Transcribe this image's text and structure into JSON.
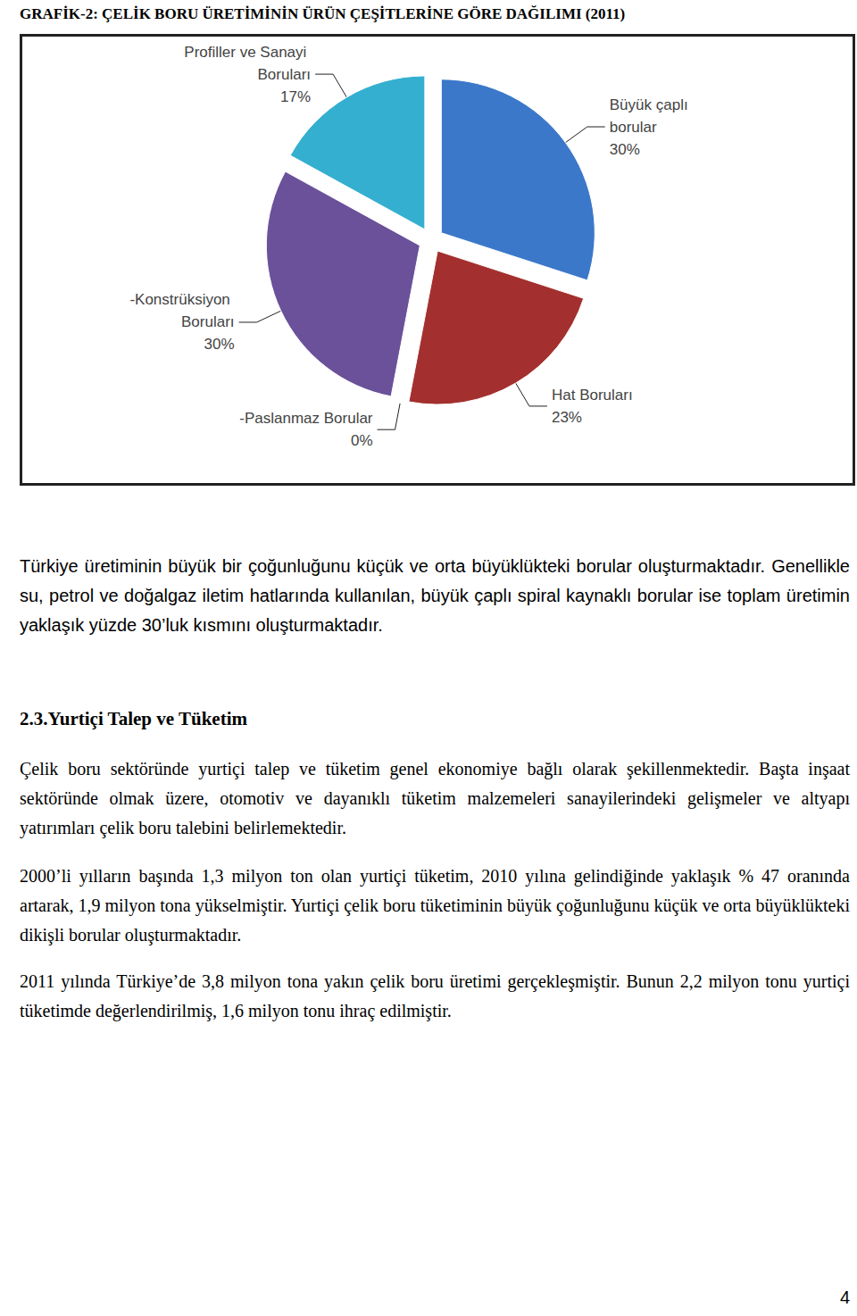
{
  "title": "GRAFİK-2: ÇELİK BORU ÜRETİMİNİN ÜRÜN ÇEŞİTLERİNE GÖRE DAĞILIMI (2011)",
  "chart_data": {
    "type": "pie",
    "categories": [
      "Büyük çaplı borular",
      "Hat Boruları",
      "-Paslanmaz Borular",
      "-Konstrüksiyon Boruları",
      "Profiller ve Sanayi Boruları"
    ],
    "values": [
      30,
      23,
      0,
      30,
      17
    ],
    "value_labels": [
      "30%",
      "23%",
      "0%",
      "30%",
      "17%"
    ],
    "colors": [
      "#3b78c9",
      "#a3302e",
      "#7fa23c",
      "#6a519a",
      "#34afd0"
    ],
    "data_labels": true
  },
  "intro_paragraph": "Türkiye üretiminin büyük bir çoğunluğunu küçük ve orta büyüklükteki borular oluşturmaktadır. Genellikle su, petrol ve doğalgaz iletim hatlarında kullanılan, büyük çaplı spiral kaynaklı borular ise toplam üretimin yaklaşık yüzde 30’luk kısmını oluşturmaktadır.",
  "section_heading": "2.3.Yurtiçi Talep ve Tüketim",
  "paragraphs": [
    "Çelik boru sektöründe yurtiçi talep ve tüketim genel ekonomiye bağlı olarak şekillenmektedir. Başta inşaat sektöründe olmak üzere, otomotiv ve dayanıklı tüketim malzemeleri sanayilerindeki gelişmeler ve altyapı yatırımları çelik boru talebini belirlemektedir.",
    "2000’li yılların başında 1,3 milyon ton olan yurtiçi tüketim, 2010 yılına gelindiğinde yaklaşık % 47 oranında artarak, 1,9 milyon tona yükselmiştir. Yurtiçi çelik boru tüketiminin büyük çoğunluğunu küçük ve orta büyüklükteki dikişli borular oluşturmaktadır.",
    "2011 yılında Türkiye’de 3,8 milyon tona yakın çelik boru üretimi gerçekleşmiştir. Bunun 2,2 milyon tonu yurtiçi tüketimde değerlendirilmiş, 1,6 milyon tonu ihraç edilmiştir."
  ],
  "page_number": "4"
}
